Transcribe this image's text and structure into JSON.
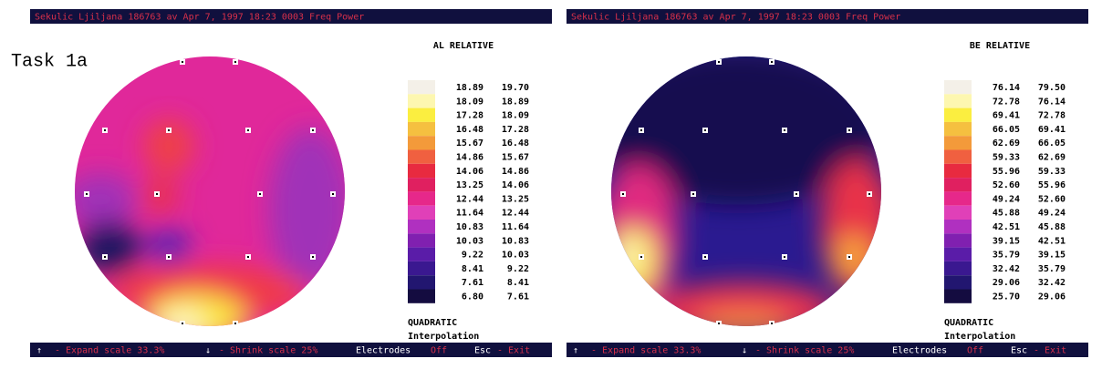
{
  "annotation": "Task 1a",
  "palette": [
    "#f4f0e8",
    "#fdf7b0",
    "#fbee40",
    "#f5c040",
    "#f39a3a",
    "#f06040",
    "#e82a40",
    "#e02060",
    "#e6288a",
    "#e040b8",
    "#b030c0",
    "#8020b0",
    "#5a1ca8",
    "#3a1890",
    "#221670",
    "#140c40"
  ],
  "panels": [
    {
      "header": "Sekulic Ljiljana  186763     av Apr  7, 1997 18:23 0003     Freq Power",
      "title": "AL RELATIVE",
      "legend": [
        [
          "18.89",
          "19.70"
        ],
        [
          "18.09",
          "18.89"
        ],
        [
          "17.28",
          "18.09"
        ],
        [
          "16.48",
          "17.28"
        ],
        [
          "15.67",
          "16.48"
        ],
        [
          "14.86",
          "15.67"
        ],
        [
          "14.06",
          "14.86"
        ],
        [
          "13.25",
          "14.06"
        ],
        [
          "12.44",
          "13.25"
        ],
        [
          "11.64",
          "12.44"
        ],
        [
          "10.83",
          "11.64"
        ],
        [
          "10.03",
          "10.83"
        ],
        [
          "9.22",
          "10.03"
        ],
        [
          "8.41",
          "9.22"
        ],
        [
          "7.61",
          "8.41"
        ],
        [
          "6.80",
          "7.61"
        ]
      ],
      "method": "QUADRATIC",
      "interpolation": "Interpolation",
      "footer": [
        "↑",
        "- Expand scale 33.3%",
        "↓",
        "- Shrink scale 25%",
        "Electrodes",
        "Off",
        "Esc",
        "- Exit"
      ]
    },
    {
      "header": "Sekulic Ljiljana  186763     av Apr  7, 1997 18:23 0003     Freq Power",
      "title": "BE RELATIVE",
      "legend": [
        [
          "76.14",
          "79.50"
        ],
        [
          "72.78",
          "76.14"
        ],
        [
          "69.41",
          "72.78"
        ],
        [
          "66.05",
          "69.41"
        ],
        [
          "62.69",
          "66.05"
        ],
        [
          "59.33",
          "62.69"
        ],
        [
          "55.96",
          "59.33"
        ],
        [
          "52.60",
          "55.96"
        ],
        [
          "49.24",
          "52.60"
        ],
        [
          "45.88",
          "49.24"
        ],
        [
          "42.51",
          "45.88"
        ],
        [
          "39.15",
          "42.51"
        ],
        [
          "35.79",
          "39.15"
        ],
        [
          "32.42",
          "35.79"
        ],
        [
          "29.06",
          "32.42"
        ],
        [
          "25.70",
          "29.06"
        ]
      ],
      "method": "QUADRATIC",
      "interpolation": "Interpolation",
      "footer": [
        "↑",
        "- Expand scale 33.3%",
        "↓",
        "- Shrink scale 25%",
        "Electrodes",
        "Off",
        "Esc",
        "- Exit"
      ]
    }
  ]
}
